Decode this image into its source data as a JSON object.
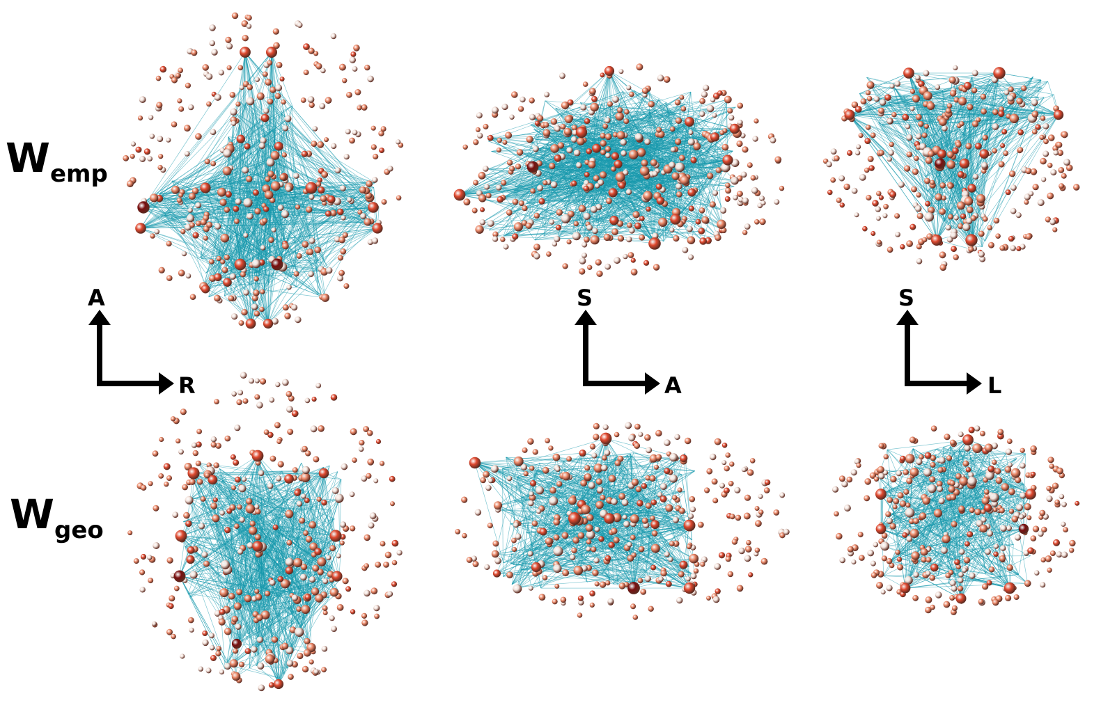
{
  "rows": [
    {
      "id": "emp",
      "label_main": "W",
      "label_sub": "emp"
    },
    {
      "id": "geo",
      "label_main": "W",
      "label_sub": "geo"
    }
  ],
  "axes": [
    {
      "id": "axial",
      "up": "A",
      "right": "R"
    },
    {
      "id": "sagittal",
      "up": "S",
      "right": "A"
    },
    {
      "id": "coronal",
      "up": "S",
      "right": "L"
    }
  ],
  "colors": {
    "edge": "#1899ad",
    "node_light": "#f3e3dc",
    "node_mid": "#ec8a6a",
    "node_strong": "#e04a30",
    "node_dark": "#7a0f0f",
    "arrow": "#000000"
  }
}
